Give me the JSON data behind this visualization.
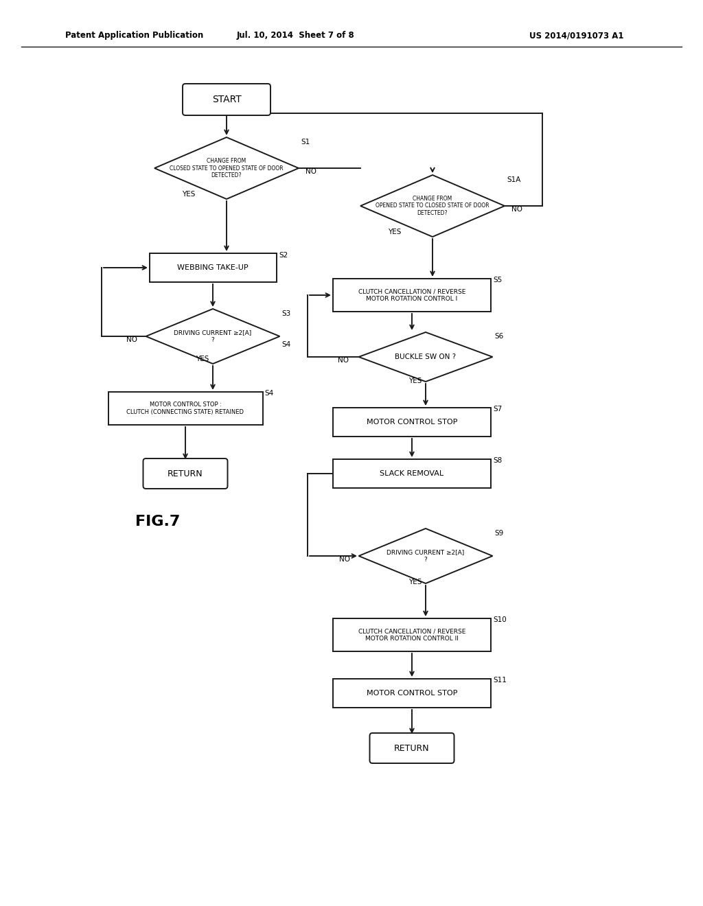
{
  "title_left": "Patent Application Publication",
  "title_mid": "Jul. 10, 2014  Sheet 7 of 8",
  "title_right": "US 2014/0191073 A1",
  "fig_label": "FIG.7",
  "background": "#ffffff",
  "line_color": "#1a1a1a"
}
